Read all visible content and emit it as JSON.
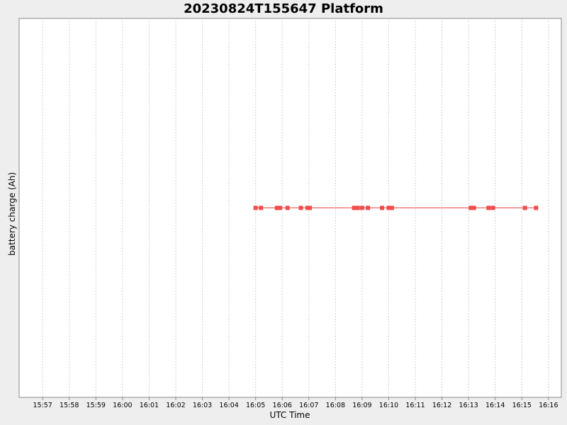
{
  "chart_data": {
    "type": "line",
    "title": "20230824T155647 Platform",
    "xlabel": "UTC Time",
    "ylabel": "battery charge (Ah)",
    "x_ticks": [
      "15:57",
      "15:58",
      "15:59",
      "16:00",
      "16:01",
      "16:02",
      "16:03",
      "16:04",
      "16:05",
      "16:06",
      "16:07",
      "16:08",
      "16:09",
      "16:10",
      "16:11",
      "16:12",
      "16:13",
      "16:14",
      "16:15",
      "16:16"
    ],
    "xlim": [
      "15:56:07",
      "16:16:29"
    ],
    "grid": {
      "vertical": true,
      "horizontal": false
    },
    "legend": "none",
    "series": [
      {
        "color": "#f04c4c",
        "x": [
          "16:05:00",
          "16:05:12",
          "16:05:48",
          "16:05:55",
          "16:06:12",
          "16:06:42",
          "16:06:57",
          "16:07:02",
          "16:08:42",
          "16:08:50",
          "16:09:00",
          "16:09:13",
          "16:09:45",
          "16:10:00",
          "16:10:07",
          "16:13:05",
          "16:13:12",
          "16:13:45",
          "16:13:55",
          "16:15:07",
          "16:15:32"
        ],
        "y": [
          0,
          0,
          0,
          0,
          0,
          0,
          0,
          0,
          0,
          0,
          0,
          0,
          0,
          0,
          0,
          0,
          0,
          0,
          0,
          0,
          0
        ]
      }
    ]
  }
}
